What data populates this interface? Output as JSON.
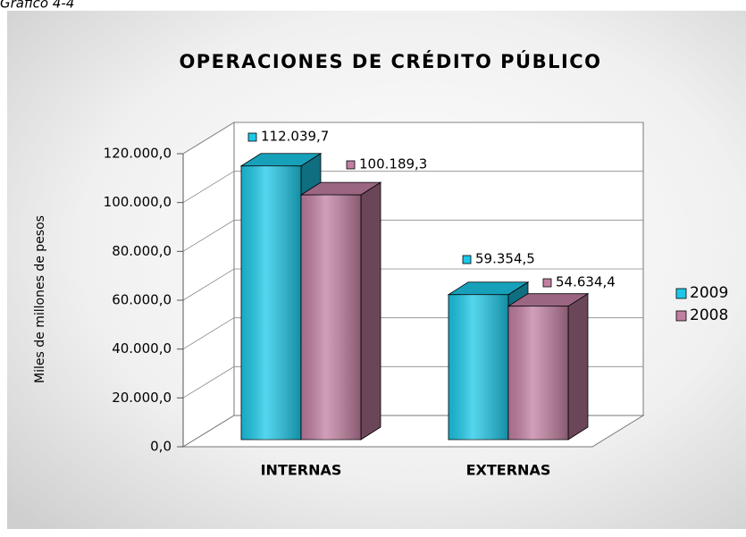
{
  "caption": "Gráfico 4-4",
  "chart_data": {
    "type": "bar3d",
    "title": "OPERACIONES DE CRÉDITO PÚBLICO",
    "y_label": "Miles de millones de pesos",
    "categories": [
      "INTERNAS",
      "EXTERNAS"
    ],
    "series": [
      {
        "name": "2009",
        "color": "#1cc8e8",
        "values": [
          112039.7,
          59354.5
        ],
        "value_labels": [
          "112.039,7",
          "59.354,5"
        ]
      },
      {
        "name": "2008",
        "color": "#c27fa2",
        "values": [
          100189.3,
          54634.4
        ],
        "value_labels": [
          "100.189,3",
          "54.634,4"
        ]
      }
    ],
    "ylim": [
      0,
      120000
    ],
    "yticks": [
      {
        "value": 0,
        "label": "0,0"
      },
      {
        "value": 20000,
        "label": "20.000,0"
      },
      {
        "value": 40000,
        "label": "40.000,0"
      },
      {
        "value": 60000,
        "label": "60.000,0"
      },
      {
        "value": 80000,
        "label": "80.000,0"
      },
      {
        "value": 100000,
        "label": "100.000,0"
      },
      {
        "value": 120000,
        "label": "120.000,0"
      }
    ],
    "grid": true,
    "legend": "right"
  }
}
